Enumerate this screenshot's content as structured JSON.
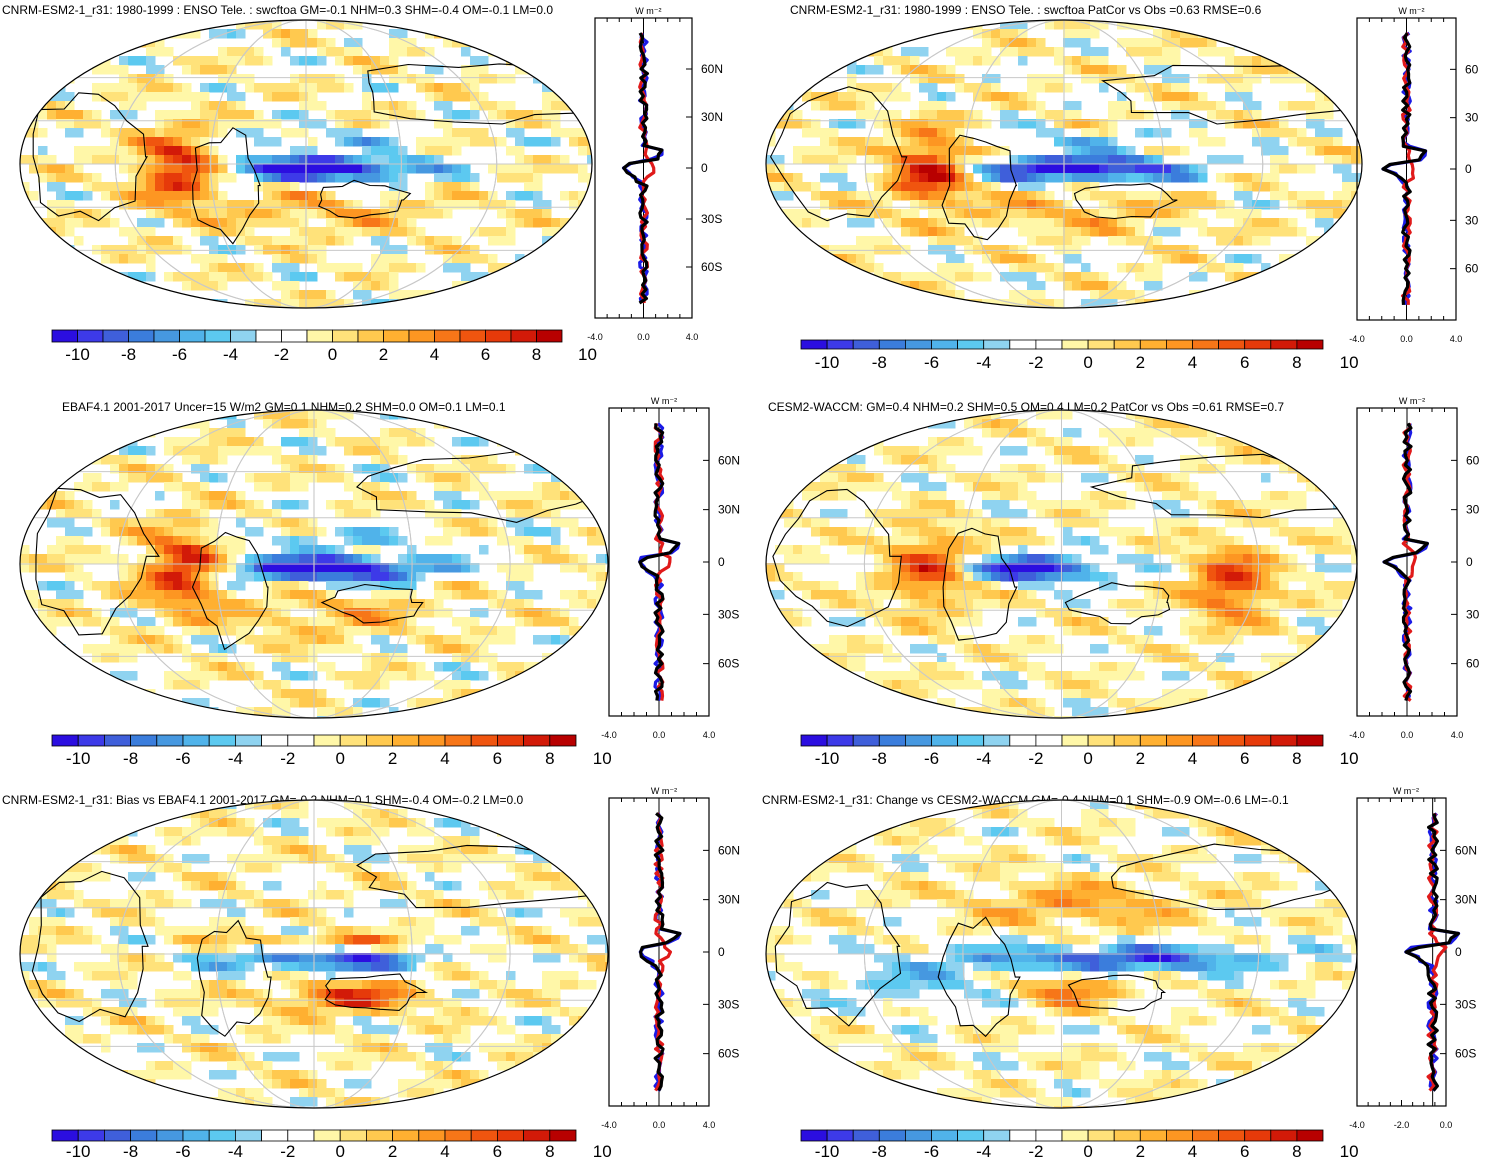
{
  "colorbar": {
    "levels": [
      "-10",
      "-8",
      "-6",
      "-4",
      "-2",
      "0",
      "2",
      "4",
      "6",
      "8",
      "10"
    ],
    "colors": [
      "#2b0ee0",
      "#3d3ae8",
      "#3f5fda",
      "#3b7ddc",
      "#4698e0",
      "#50b3ea",
      "#5cc9f0",
      "#8fd3f0",
      "#ffffff",
      "#ffffff",
      "#fff7a8",
      "#ffe27a",
      "#ffc94f",
      "#ffb031",
      "#fd9622",
      "#f77618",
      "#f0550f",
      "#e63a0a",
      "#d21a08",
      "#b80000"
    ]
  },
  "profile_units": "W m⁻²",
  "profile_colors": {
    "model": "#1a1ae6",
    "obs": "#e01a1a",
    "diff": "#000000"
  },
  "panels": [
    {
      "title": "CNRM-ESM2-1_r31: 1980-1999 : ENSO Tele. : swcftoa GM=-0.1 NHM=0.3 SHM=-0.4 OM=-0.1 LM=0.0",
      "lat_labels": [
        "60N",
        "30N",
        "0",
        "30S",
        "60S"
      ],
      "xticks": [
        "-4.0",
        "0.0",
        "4.0"
      ],
      "chart_data": {
        "type": "heatmap",
        "field": "swcftoa ENSO teleconnection",
        "cbar_range": [
          -10,
          10
        ]
      }
    },
    {
      "title": "CNRM-ESM2-1_r31: 1980-1999 : ENSO Tele. : swcftoa PatCor vs Obs =0.63 RMSE=0.6",
      "lat_labels": [
        "60",
        "30",
        "0",
        "30",
        "60"
      ],
      "xticks": [
        "-4.0",
        "0.0",
        "4.0"
      ],
      "chart_data": {
        "type": "heatmap",
        "field": "swcftoa ENSO teleconnection",
        "cbar_range": [
          -10,
          10
        ]
      }
    },
    {
      "title": "EBAF4.1 2001-2017 Uncer=15 W/m2 GM=0.1 NHM=0.2 SHM=0.0 OM=0.1 LM=0.1",
      "lat_labels": [
        "60N",
        "30N",
        "0",
        "30S",
        "60S"
      ],
      "xticks": [
        "-4.0",
        "0.0",
        "4.0"
      ],
      "chart_data": {
        "type": "heatmap",
        "field": "EBAF4.1 observations",
        "cbar_range": [
          -10,
          10
        ]
      }
    },
    {
      "title": "CESM2-WACCM: GM=0.4 NHM=0.2 SHM=0.5 OM=0.4 LM=0.2 PatCor vs Obs =0.61 RMSE=0.7",
      "lat_labels": [
        "60",
        "30",
        "0",
        "30",
        "60"
      ],
      "xticks": [
        "-4.0",
        "0.0",
        "4.0"
      ],
      "chart_data": {
        "type": "heatmap",
        "field": "CESM2-WACCM",
        "cbar_range": [
          -10,
          10
        ]
      }
    },
    {
      "title": "CNRM-ESM2-1_r31: Bias vs EBAF4.1 2001-2017 GM=-0.2 NHM=0.1 SHM=-0.4 OM=-0.2 LM=0.0",
      "lat_labels": [
        "60N",
        "30N",
        "0",
        "30S",
        "60S"
      ],
      "xticks": [
        "-4.0",
        "0.0",
        "4.0"
      ],
      "chart_data": {
        "type": "heatmap",
        "field": "bias vs EBAF4.1",
        "cbar_range": [
          -10,
          10
        ]
      }
    },
    {
      "title": "CNRM-ESM2-1_r31: Change vs CESM2-WACCM GM=-0.4 NHM=0.1 SHM=-0.9 OM=-0.6 LM=-0.1",
      "lat_labels": [
        "60N",
        "30N",
        "0",
        "30S",
        "60S"
      ],
      "xticks": [
        "-4.0",
        "-2.0",
        "0.0"
      ],
      "chart_data": {
        "type": "heatmap",
        "field": "change vs CESM2-WACCM",
        "cbar_range": [
          -10,
          10
        ]
      }
    }
  ]
}
